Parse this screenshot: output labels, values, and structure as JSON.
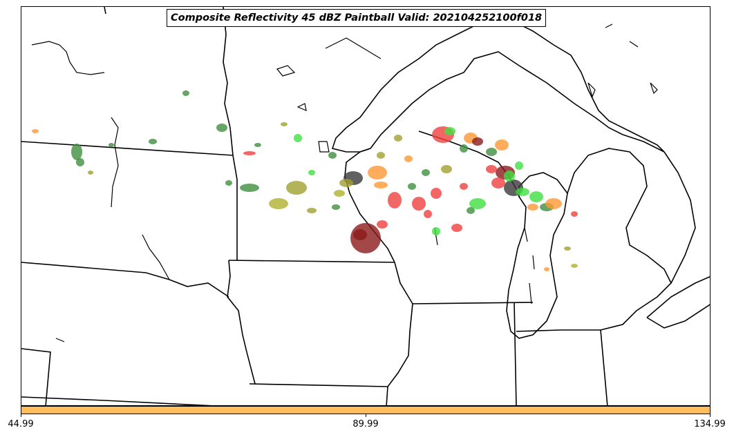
{
  "title": "Composite Reflectivity 45 dBZ Paintball Valid: 202104252100f018",
  "colorbar": {
    "color": "#ffbf5f",
    "tick_labels": [
      "44.99",
      "89.99",
      "134.99"
    ]
  },
  "map": {
    "region": "Upper Midwest / Great Lakes",
    "boundary_color": "#000000",
    "paintball_colors": [
      "#3f8f3f",
      "#f04040",
      "#ff9933",
      "#a0a030",
      "#3a3a3a",
      "#40e040",
      "#8b1a1a",
      "#b0b030"
    ]
  }
}
